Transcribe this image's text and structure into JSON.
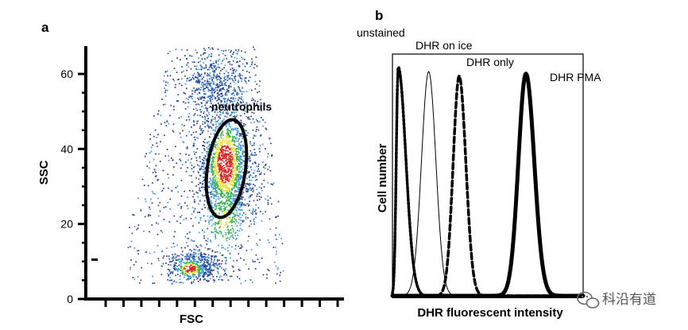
{
  "panels": {
    "a": {
      "letter": "a"
    },
    "b": {
      "letter": "b"
    }
  },
  "watermark": {
    "text": "科沿有道",
    "icon": "wechat-logo-icon"
  },
  "chart_data": [
    {
      "type": "scatter",
      "panel": "a",
      "xlabel": "FSC",
      "ylabel": "SSC",
      "ylim": [
        0,
        60
      ],
      "yticks": [
        0,
        20,
        40,
        60
      ],
      "x_tick_count": 14,
      "density_colors": [
        "#2a3f96",
        "#3f9ad6",
        "#35b34a",
        "#f0e03a",
        "#e0221c"
      ],
      "gate": {
        "label": "neutrophils",
        "shape": "ellipse",
        "center_y": 34,
        "height_y": 26
      },
      "series": []
    },
    {
      "type": "line",
      "panel": "b",
      "xlabel": "DHR fluorescent intensity",
      "ylabel": "Cell number",
      "grid": false,
      "series": [
        {
          "name": "unstained",
          "style": "dotted",
          "peak_x": 0.03
        },
        {
          "name": "DHR on ice",
          "style": "thin",
          "peak_x": 0.19
        },
        {
          "name": "DHR only",
          "style": "dashed",
          "peak_x": 0.35
        },
        {
          "name": "DHR PMA",
          "style": "thick",
          "peak_x": 0.7
        }
      ]
    }
  ]
}
